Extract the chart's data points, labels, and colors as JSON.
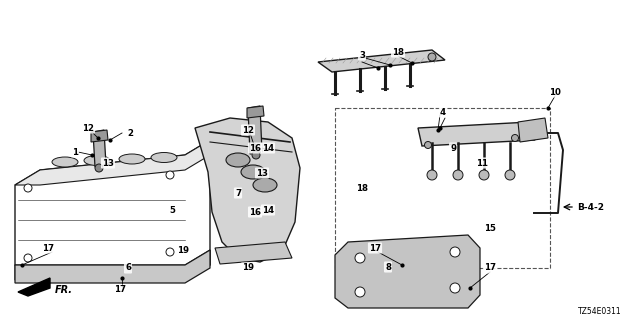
{
  "background_color": "#ffffff",
  "line_color": "#1a1a1a",
  "diagram_code": "TZ54E0311",
  "label_b42": [
    575,
    207
  ],
  "fr_label": [
    55,
    290
  ],
  "labels": [
    [
      "1",
      75,
      152
    ],
    [
      "2",
      130,
      133
    ],
    [
      "3",
      362,
      55
    ],
    [
      "4",
      443,
      112
    ],
    [
      "5",
      172,
      210
    ],
    [
      "6",
      128,
      268
    ],
    [
      "7",
      238,
      193
    ],
    [
      "8",
      388,
      267
    ],
    [
      "9",
      453,
      148
    ],
    [
      "10",
      555,
      92
    ],
    [
      "11",
      482,
      163
    ],
    [
      "12",
      88,
      128
    ],
    [
      "12",
      248,
      130
    ],
    [
      "13",
      108,
      163
    ],
    [
      "13",
      262,
      173
    ],
    [
      "14",
      268,
      148
    ],
    [
      "14",
      268,
      210
    ],
    [
      "15",
      490,
      228
    ],
    [
      "16",
      255,
      148
    ],
    [
      "16",
      255,
      212
    ],
    [
      "17",
      48,
      248
    ],
    [
      "17",
      120,
      290
    ],
    [
      "17",
      375,
      248
    ],
    [
      "17",
      490,
      268
    ],
    [
      "18",
      398,
      52
    ],
    [
      "18",
      362,
      188
    ],
    [
      "19",
      248,
      268
    ],
    [
      "19",
      183,
      250
    ]
  ]
}
